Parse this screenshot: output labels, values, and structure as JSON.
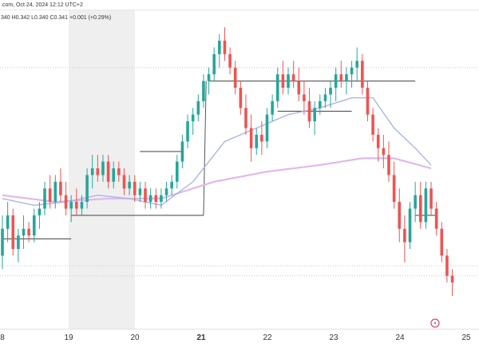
{
  "header": {
    "source_text": ".com, Oct 24, 2024 12:12 UTC+2",
    "ohlc_text": "340  H0.342  L0.340  C0.341  +0.001 (+0.29%)"
  },
  "colors": {
    "up": "#26a69a",
    "down": "#ef5350",
    "ma_fast": "#aab4e8",
    "ma_slow": "#e0b8ea",
    "level_line": "#555555",
    "dotted_line": "#c8c8c8",
    "shade": "#efefef",
    "logo": "#d44b6a"
  },
  "watermark_icon": "tradingview-logo-icon",
  "chart_data": {
    "type": "candlestick",
    "x_axis": {
      "tick_labels": [
        "8",
        "19",
        "20",
        "21",
        "22",
        "23",
        "24",
        "25"
      ],
      "bold_label": "21"
    },
    "y_range": [
      0.3255,
      0.3685
    ],
    "shaded_day": "19",
    "candles": [
      [
        0.334,
        0.34,
        0.332,
        0.338
      ],
      [
        0.338,
        0.342,
        0.336,
        0.34
      ],
      [
        0.34,
        0.341,
        0.334,
        0.335
      ],
      [
        0.335,
        0.338,
        0.333,
        0.337
      ],
      [
        0.337,
        0.34,
        0.335,
        0.338
      ],
      [
        0.338,
        0.339,
        0.336,
        0.337
      ],
      [
        0.337,
        0.341,
        0.336,
        0.34
      ],
      [
        0.34,
        0.342,
        0.338,
        0.341
      ],
      [
        0.341,
        0.345,
        0.34,
        0.344
      ],
      [
        0.344,
        0.346,
        0.341,
        0.342
      ],
      [
        0.342,
        0.346,
        0.341,
        0.345
      ],
      [
        0.345,
        0.347,
        0.342,
        0.343
      ],
      [
        0.343,
        0.345,
        0.34,
        0.341
      ],
      [
        0.341,
        0.343,
        0.339,
        0.342
      ],
      [
        0.342,
        0.344,
        0.34,
        0.341
      ],
      [
        0.341,
        0.343,
        0.34,
        0.342
      ],
      [
        0.342,
        0.347,
        0.341,
        0.346
      ],
      [
        0.346,
        0.349,
        0.344,
        0.347
      ],
      [
        0.347,
        0.349,
        0.345,
        0.346
      ],
      [
        0.346,
        0.349,
        0.345,
        0.348
      ],
      [
        0.348,
        0.349,
        0.344,
        0.345
      ],
      [
        0.345,
        0.348,
        0.344,
        0.347
      ],
      [
        0.347,
        0.348,
        0.345,
        0.346
      ],
      [
        0.346,
        0.347,
        0.343,
        0.344
      ],
      [
        0.344,
        0.346,
        0.343,
        0.345
      ],
      [
        0.345,
        0.346,
        0.342,
        0.343
      ],
      [
        0.343,
        0.345,
        0.342,
        0.344
      ],
      [
        0.344,
        0.345,
        0.341,
        0.342
      ],
      [
        0.342,
        0.344,
        0.341,
        0.343
      ],
      [
        0.343,
        0.344,
        0.341,
        0.342
      ],
      [
        0.342,
        0.344,
        0.341,
        0.343
      ],
      [
        0.343,
        0.345,
        0.342,
        0.344
      ],
      [
        0.344,
        0.346,
        0.343,
        0.345
      ],
      [
        0.345,
        0.349,
        0.344,
        0.348
      ],
      [
        0.348,
        0.352,
        0.347,
        0.351
      ],
      [
        0.351,
        0.355,
        0.35,
        0.354
      ],
      [
        0.354,
        0.356,
        0.352,
        0.355
      ],
      [
        0.355,
        0.358,
        0.354,
        0.357
      ],
      [
        0.357,
        0.361,
        0.356,
        0.36
      ],
      [
        0.36,
        0.362,
        0.358,
        0.361
      ],
      [
        0.361,
        0.365,
        0.36,
        0.364
      ],
      [
        0.364,
        0.367,
        0.362,
        0.366
      ],
      [
        0.366,
        0.368,
        0.363,
        0.364
      ],
      [
        0.364,
        0.365,
        0.361,
        0.362
      ],
      [
        0.362,
        0.363,
        0.358,
        0.359
      ],
      [
        0.359,
        0.36,
        0.355,
        0.356
      ],
      [
        0.356,
        0.358,
        0.352,
        0.353
      ],
      [
        0.353,
        0.355,
        0.348,
        0.35
      ],
      [
        0.35,
        0.353,
        0.349,
        0.352
      ],
      [
        0.352,
        0.354,
        0.349,
        0.351
      ],
      [
        0.351,
        0.356,
        0.35,
        0.355
      ],
      [
        0.355,
        0.358,
        0.354,
        0.357
      ],
      [
        0.357,
        0.362,
        0.356,
        0.361
      ],
      [
        0.361,
        0.363,
        0.358,
        0.359
      ],
      [
        0.359,
        0.362,
        0.358,
        0.361
      ],
      [
        0.361,
        0.363,
        0.359,
        0.36
      ],
      [
        0.36,
        0.362,
        0.357,
        0.358
      ],
      [
        0.358,
        0.36,
        0.355,
        0.357
      ],
      [
        0.357,
        0.359,
        0.353,
        0.354
      ],
      [
        0.354,
        0.357,
        0.352,
        0.356
      ],
      [
        0.356,
        0.358,
        0.355,
        0.357
      ],
      [
        0.357,
        0.359,
        0.356,
        0.358
      ],
      [
        0.358,
        0.36,
        0.356,
        0.359
      ],
      [
        0.359,
        0.362,
        0.357,
        0.361
      ],
      [
        0.361,
        0.363,
        0.359,
        0.36
      ],
      [
        0.36,
        0.362,
        0.358,
        0.361
      ],
      [
        0.361,
        0.363,
        0.359,
        0.362
      ],
      [
        0.362,
        0.365,
        0.36,
        0.363
      ],
      [
        0.363,
        0.364,
        0.358,
        0.359
      ],
      [
        0.359,
        0.36,
        0.354,
        0.355
      ],
      [
        0.355,
        0.356,
        0.351,
        0.352
      ],
      [
        0.352,
        0.353,
        0.348,
        0.35
      ],
      [
        0.35,
        0.352,
        0.347,
        0.349
      ],
      [
        0.349,
        0.351,
        0.345,
        0.346
      ],
      [
        0.346,
        0.348,
        0.341,
        0.342
      ],
      [
        0.342,
        0.344,
        0.336,
        0.338
      ],
      [
        0.338,
        0.34,
        0.333,
        0.336
      ],
      [
        0.336,
        0.342,
        0.335,
        0.341
      ],
      [
        0.341,
        0.345,
        0.339,
        0.343
      ],
      [
        0.343,
        0.345,
        0.338,
        0.339
      ],
      [
        0.339,
        0.345,
        0.338,
        0.344
      ],
      [
        0.344,
        0.345,
        0.34,
        0.341
      ],
      [
        0.341,
        0.342,
        0.337,
        0.338
      ],
      [
        0.338,
        0.339,
        0.333,
        0.334
      ],
      [
        0.334,
        0.335,
        0.33,
        0.331
      ],
      [
        0.331,
        0.332,
        0.328,
        0.33
      ]
    ],
    "ma_fast_points": [
      [
        0,
        0.3425
      ],
      [
        6,
        0.3415
      ],
      [
        12,
        0.342
      ],
      [
        18,
        0.343
      ],
      [
        24,
        0.3425
      ],
      [
        30,
        0.3415
      ],
      [
        36,
        0.345
      ],
      [
        42,
        0.351
      ],
      [
        48,
        0.353
      ],
      [
        54,
        0.355
      ],
      [
        60,
        0.356
      ],
      [
        66,
        0.3575
      ],
      [
        70,
        0.3575
      ],
      [
        74,
        0.353
      ],
      [
        78,
        0.35
      ],
      [
        81,
        0.3475
      ]
    ],
    "ma_slow_points": [
      [
        0,
        0.343
      ],
      [
        10,
        0.342
      ],
      [
        20,
        0.3425
      ],
      [
        30,
        0.3425
      ],
      [
        40,
        0.345
      ],
      [
        50,
        0.3465
      ],
      [
        60,
        0.3475
      ],
      [
        68,
        0.3485
      ],
      [
        74,
        0.3485
      ],
      [
        81,
        0.347
      ]
    ],
    "levels": [
      {
        "value": 0.3365,
        "from": 0,
        "to": 13
      },
      {
        "value": 0.34,
        "from": 13,
        "to": 38
      },
      {
        "value": 0.36,
        "from": 39,
        "to": 78
      },
      {
        "value": 0.3555,
        "from": 52,
        "to": 66
      },
      {
        "value": 0.3495,
        "from": 26,
        "to": 34
      },
      {
        "value": 0.34,
        "from": 78,
        "to": 82
      }
    ],
    "dotted_levels": [
      0.362,
      0.3325,
      0.331
    ]
  }
}
